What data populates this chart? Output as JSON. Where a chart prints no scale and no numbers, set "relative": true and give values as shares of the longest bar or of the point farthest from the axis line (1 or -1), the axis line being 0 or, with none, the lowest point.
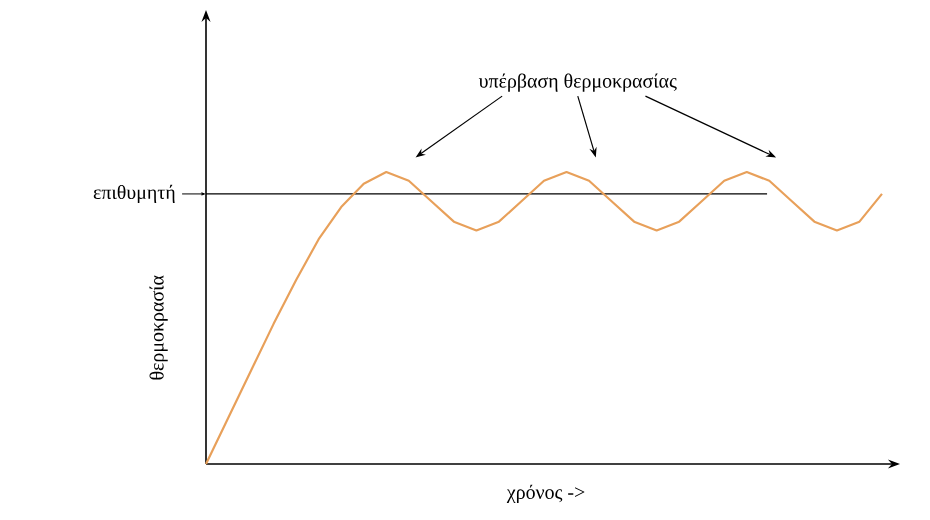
{
  "chart_data": {
    "type": "line",
    "relative": true,
    "xlabel": "χρόνος ->",
    "ylabel": "θερμοκρασία",
    "categories": [
      null,
      null,
      null,
      null,
      null,
      null,
      null,
      null,
      null,
      null,
      null,
      null,
      null,
      null,
      null,
      null,
      null,
      null,
      null,
      null,
      null,
      null,
      null,
      null,
      null,
      null,
      null,
      null,
      null,
      null,
      null
    ],
    "series": [
      {
        "color": "#e8a05a",
        "values": [
          0,
          0.16,
          0.32,
          0.48,
          0.63,
          0.77,
          0.88,
          0.96,
          1,
          0.97,
          0.9,
          0.83,
          0.8,
          0.83,
          0.9,
          0.97,
          1,
          0.97,
          0.9,
          0.83,
          0.8,
          0.83,
          0.9,
          0.97,
          1,
          0.97,
          0.9,
          0.83,
          0.8,
          0.83,
          0.925
        ]
      }
    ],
    "ref_lines": [
      {
        "axis": "y",
        "value": 0.925,
        "label": "επιθυμητή",
        "color": "#000000"
      }
    ],
    "annotations": [
      "υπέρβαση θερμοκρασίας"
    ]
  }
}
